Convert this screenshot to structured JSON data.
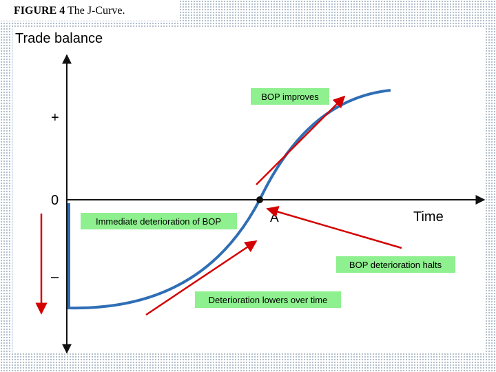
{
  "figure": {
    "label": "FIGURE 4",
    "caption": "The J-Curve."
  },
  "axes": {
    "y_label": "Trade balance",
    "x_label": "Time",
    "plus": "+",
    "zero": "0",
    "minus": "–"
  },
  "point_label": "A",
  "annotations": [
    "BOP improves",
    "Immediate deterioration of BOP",
    "BOP deterioration halts",
    "Deterioration lowers over time"
  ]
}
